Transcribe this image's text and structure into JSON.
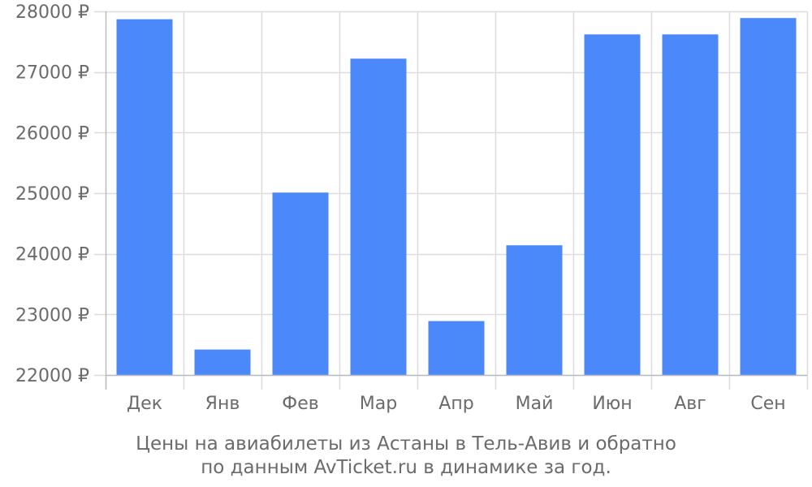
{
  "chart_data": {
    "type": "bar",
    "categories": [
      "Дек",
      "Янв",
      "Фев",
      "Мар",
      "Апр",
      "Май",
      "Июн",
      "Авг",
      "Сен"
    ],
    "values": [
      27870,
      22420,
      25010,
      27220,
      22890,
      24140,
      27620,
      27620,
      27890
    ],
    "ylim": [
      22000,
      28000
    ],
    "yticks": [
      "22000 ₽",
      "23000 ₽",
      "24000 ₽",
      "25000 ₽",
      "26000 ₽",
      "27000 ₽",
      "28000 ₽"
    ],
    "bar_color": "#4b89fa",
    "grid": true
  },
  "caption": {
    "line1": "Цены на авиабилеты из Астаны в Тель-Авив и обратно",
    "line2": "по данным AvTicket.ru в динамике за год."
  },
  "colors": {
    "grid": "#dddddd",
    "axis": "#bbbbbb",
    "text": "#6b6b6b"
  }
}
